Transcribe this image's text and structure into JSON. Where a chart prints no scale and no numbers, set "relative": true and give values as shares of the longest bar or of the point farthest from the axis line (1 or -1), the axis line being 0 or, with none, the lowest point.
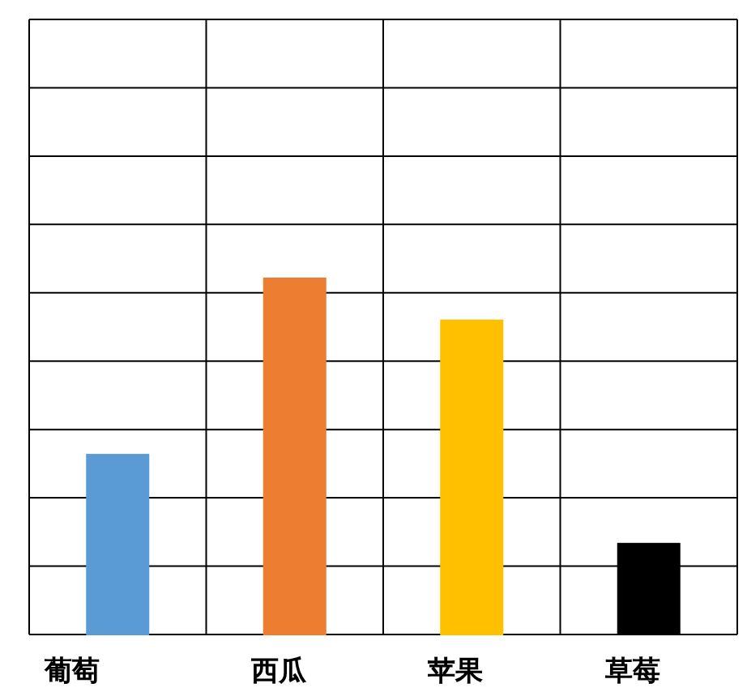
{
  "chart_data": {
    "type": "bar",
    "relative": true,
    "grid": true,
    "categories": [
      "葡萄",
      "西瓜",
      "苹果",
      "草莓"
    ],
    "values": [
      0.505,
      1,
      0.882,
      0.255
    ],
    "colors": [
      "#5b9bd5",
      "#ed7d31",
      "#ffc000",
      "#000000"
    ]
  }
}
